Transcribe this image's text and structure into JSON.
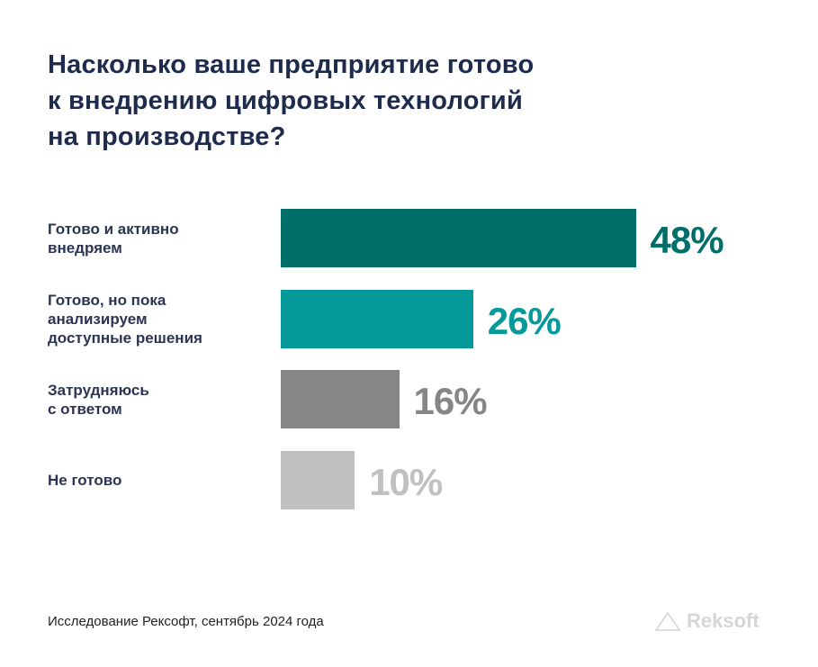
{
  "chart_data": {
    "type": "bar",
    "orientation": "horizontal",
    "title": "Насколько ваше предприятие готово к внедрению цифровых технологий на производстве?",
    "title_lines": [
      "Насколько ваше предприятие готово",
      "к внедрению цифровых технологий",
      "на производстве?"
    ],
    "categories": [
      "Готово и активно внедряем",
      "Готово, но пока анализируем доступные решения",
      "Затрудняюсь с ответом",
      "Не готово"
    ],
    "category_lines": [
      [
        "Готово и активно",
        "внедряем"
      ],
      [
        "Готово, но пока",
        "анализируем",
        "доступные решения"
      ],
      [
        "Затрудняюсь",
        "с ответом"
      ],
      [
        "Не готово"
      ]
    ],
    "values": [
      48,
      26,
      16,
      10
    ],
    "data_labels": [
      "48%",
      "26%",
      "16%",
      "10%"
    ],
    "colors": [
      "#006e69",
      "#05999a",
      "#868686",
      "#c0c0c0"
    ],
    "label_colors": [
      "#006e69",
      "#05999a",
      "#868686",
      "#c0c0c0"
    ],
    "unit": "%",
    "grid": false,
    "axes_visible": false
  },
  "footer": {
    "source": "Исследование Рексофт, сентябрь 2024 года",
    "logo_text": "Reksoft"
  }
}
